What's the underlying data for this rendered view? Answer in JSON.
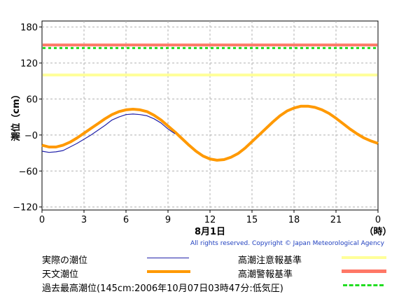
{
  "chart_data": {
    "type": "line",
    "ylabel": "潮位（cm）",
    "date_label": "8月1日",
    "x_unit_label": "（時）",
    "xlim": [
      0,
      24
    ],
    "ylim": [
      -125,
      190
    ],
    "yticks": [
      180,
      120,
      60,
      0,
      -60,
      -120
    ],
    "ytick_labels": [
      "180",
      "120",
      "60",
      "−0",
      "−60",
      "−120"
    ],
    "xtick_labels": [
      "0",
      "3",
      "6",
      "9",
      "12",
      "15",
      "18",
      "21",
      "0"
    ],
    "xtick_hours": [
      0,
      3,
      6,
      9,
      12,
      15,
      18,
      21,
      24
    ],
    "grid": true,
    "series": [
      {
        "name": "天文潮位",
        "color": "#ff9900",
        "kind": "line",
        "x": [
          0,
          0.5,
          1,
          1.5,
          2,
          2.5,
          3,
          3.5,
          4,
          4.5,
          5,
          5.5,
          6,
          6.5,
          7,
          7.5,
          8,
          8.5,
          9,
          9.5,
          10,
          10.5,
          11,
          11.5,
          12,
          12.5,
          13,
          13.5,
          14,
          14.5,
          15,
          15.5,
          16,
          16.5,
          17,
          17.5,
          18,
          18.5,
          19,
          19.5,
          20,
          20.5,
          21,
          21.5,
          22,
          22.5,
          23,
          23.5,
          24
        ],
        "values": [
          -17,
          -20,
          -20,
          -17,
          -12,
          -5,
          3,
          11,
          19,
          27,
          34,
          39,
          42,
          43,
          42,
          39,
          33,
          25,
          15,
          5,
          -6,
          -17,
          -27,
          -35,
          -40,
          -42,
          -41,
          -37,
          -31,
          -22,
          -11,
          0,
          11,
          22,
          32,
          40,
          45,
          48,
          48,
          46,
          42,
          36,
          28,
          19,
          10,
          2,
          -5,
          -10,
          -14
        ]
      },
      {
        "name": "実際の潮位",
        "color": "#2222aa",
        "kind": "line",
        "x": [
          0,
          0.5,
          1,
          1.5,
          2,
          2.5,
          3,
          3.5,
          4,
          4.5,
          5,
          5.5,
          6,
          6.5,
          7,
          7.5,
          8,
          8.5,
          9,
          9.5
        ],
        "values": [
          -27,
          -29,
          -28,
          -26,
          -20,
          -14,
          -7,
          0,
          8,
          16,
          25,
          30,
          34,
          35,
          34,
          32,
          27,
          20,
          10,
          2
        ]
      }
    ],
    "reference_lines": [
      {
        "name": "高潮注意報基準",
        "value": 100,
        "color": "#ffff99",
        "style": "solid"
      },
      {
        "name": "高潮警報基準",
        "value": 150,
        "color": "#ff7766",
        "style": "solid"
      },
      {
        "name": "過去最高潮位（145cm：2006年10月07日03時47分：低気圧）",
        "value": 145,
        "color": "#22dd22",
        "style": "dashed"
      }
    ]
  },
  "copyright": "All rights reserved. Copyright © Japan Meteorological Agency",
  "legend": {
    "actual_label": "実際の潮位",
    "astro_label": "天文潮位",
    "record_label": "過去最高潮位(145cm:2006年10月07日03時47分:低気圧)",
    "caution_label": "高潮注意報基準",
    "warning_label": "高潮警報基準"
  }
}
